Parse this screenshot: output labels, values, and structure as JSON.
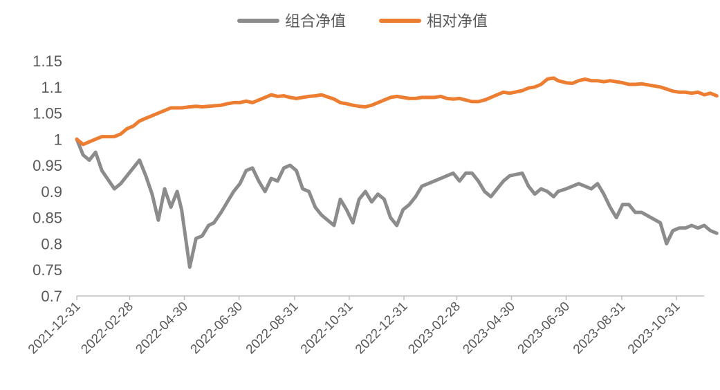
{
  "chart_data": {
    "type": "line",
    "title": "",
    "xlabel": "",
    "ylabel": "",
    "ylim": [
      0.7,
      1.15
    ],
    "y_ticks": [
      "0.7",
      "0.75",
      "0.8",
      "0.85",
      "0.9",
      "0.95",
      "1",
      "1.05",
      "1.1",
      "1.15"
    ],
    "x_ticks": [
      "2021-12-31",
      "2022-02-28",
      "2022-04-30",
      "2022-06-30",
      "2022-08-31",
      "2022-10-31",
      "2022-12-31",
      "2023-02-28",
      "2023-04-30",
      "2023-06-30",
      "2023-08-31",
      "2023-10-31"
    ],
    "grid": false,
    "legend_position": "top",
    "series": [
      {
        "name": "组合净值",
        "color": "#8C8C8C",
        "x": [
          "2021-12-31",
          "2022-01-07",
          "2022-01-14",
          "2022-01-21",
          "2022-01-28",
          "2022-02-11",
          "2022-02-18",
          "2022-02-25",
          "2022-03-04",
          "2022-03-11",
          "2022-03-18",
          "2022-03-25",
          "2022-04-01",
          "2022-04-08",
          "2022-04-15",
          "2022-04-22",
          "2022-04-27",
          "2022-05-06",
          "2022-05-13",
          "2022-05-20",
          "2022-05-27",
          "2022-06-02",
          "2022-06-10",
          "2022-06-17",
          "2022-06-24",
          "2022-07-01",
          "2022-07-08",
          "2022-07-15",
          "2022-07-22",
          "2022-07-29",
          "2022-08-05",
          "2022-08-12",
          "2022-08-19",
          "2022-08-26",
          "2022-09-02",
          "2022-09-09",
          "2022-09-16",
          "2022-09-23",
          "2022-09-30",
          "2022-10-14",
          "2022-10-21",
          "2022-10-28",
          "2022-11-04",
          "2022-11-11",
          "2022-11-18",
          "2022-11-25",
          "2022-12-02",
          "2022-12-09",
          "2022-12-16",
          "2022-12-23",
          "2022-12-30",
          "2023-01-06",
          "2023-01-13",
          "2023-01-20",
          "2023-02-03",
          "2023-02-10",
          "2023-02-17",
          "2023-02-24",
          "2023-03-03",
          "2023-03-10",
          "2023-03-17",
          "2023-03-24",
          "2023-03-31",
          "2023-04-07",
          "2023-04-14",
          "2023-04-21",
          "2023-04-28",
          "2023-05-12",
          "2023-05-19",
          "2023-05-26",
          "2023-06-02",
          "2023-06-09",
          "2023-06-16",
          "2023-06-21",
          "2023-06-30",
          "2023-07-07",
          "2023-07-14",
          "2023-07-21",
          "2023-07-28",
          "2023-08-04",
          "2023-08-11",
          "2023-08-18",
          "2023-08-25",
          "2023-09-01",
          "2023-09-08",
          "2023-09-15",
          "2023-09-22",
          "2023-10-13",
          "2023-10-20",
          "2023-10-27",
          "2023-11-03",
          "2023-11-10",
          "2023-11-17",
          "2023-11-24",
          "2023-12-01",
          "2023-12-08",
          "2023-12-15"
        ],
        "values": [
          1.0,
          0.97,
          0.96,
          0.975,
          0.94,
          0.905,
          0.915,
          0.93,
          0.945,
          0.96,
          0.93,
          0.895,
          0.845,
          0.905,
          0.87,
          0.9,
          0.865,
          0.755,
          0.81,
          0.815,
          0.835,
          0.84,
          0.86,
          0.88,
          0.9,
          0.915,
          0.94,
          0.945,
          0.92,
          0.9,
          0.925,
          0.92,
          0.945,
          0.95,
          0.94,
          0.905,
          0.9,
          0.87,
          0.855,
          0.835,
          0.885,
          0.865,
          0.84,
          0.885,
          0.9,
          0.88,
          0.895,
          0.885,
          0.85,
          0.835,
          0.865,
          0.875,
          0.89,
          0.91,
          0.92,
          0.925,
          0.93,
          0.935,
          0.92,
          0.935,
          0.935,
          0.92,
          0.9,
          0.89,
          0.905,
          0.92,
          0.93,
          0.935,
          0.91,
          0.895,
          0.905,
          0.9,
          0.89,
          0.9,
          0.905,
          0.91,
          0.915,
          0.91,
          0.905,
          0.915,
          0.895,
          0.87,
          0.85,
          0.875,
          0.875,
          0.86,
          0.86,
          0.84,
          0.8,
          0.825,
          0.83,
          0.83,
          0.835,
          0.83,
          0.835,
          0.825,
          0.82
        ]
      },
      {
        "name": "相对净值",
        "color": "#ED7D31",
        "x": [
          "2021-12-31",
          "2022-01-07",
          "2022-01-14",
          "2022-01-21",
          "2022-01-28",
          "2022-02-11",
          "2022-02-18",
          "2022-02-25",
          "2022-03-04",
          "2022-03-11",
          "2022-03-18",
          "2022-03-25",
          "2022-04-01",
          "2022-04-08",
          "2022-04-15",
          "2022-04-22",
          "2022-04-27",
          "2022-05-06",
          "2022-05-13",
          "2022-05-20",
          "2022-05-27",
          "2022-06-02",
          "2022-06-10",
          "2022-06-17",
          "2022-06-24",
          "2022-07-01",
          "2022-07-08",
          "2022-07-15",
          "2022-07-22",
          "2022-07-29",
          "2022-08-05",
          "2022-08-12",
          "2022-08-19",
          "2022-08-26",
          "2022-09-02",
          "2022-09-09",
          "2022-09-16",
          "2022-09-23",
          "2022-09-30",
          "2022-10-14",
          "2022-10-21",
          "2022-10-28",
          "2022-11-04",
          "2022-11-11",
          "2022-11-18",
          "2022-11-25",
          "2022-12-02",
          "2022-12-09",
          "2022-12-16",
          "2022-12-23",
          "2022-12-30",
          "2023-01-06",
          "2023-01-13",
          "2023-01-20",
          "2023-02-03",
          "2023-02-10",
          "2023-02-17",
          "2023-02-24",
          "2023-03-03",
          "2023-03-10",
          "2023-03-17",
          "2023-03-24",
          "2023-03-31",
          "2023-04-07",
          "2023-04-14",
          "2023-04-21",
          "2023-04-28",
          "2023-05-12",
          "2023-05-19",
          "2023-05-26",
          "2023-06-02",
          "2023-06-09",
          "2023-06-16",
          "2023-06-21",
          "2023-06-30",
          "2023-07-07",
          "2023-07-14",
          "2023-07-21",
          "2023-07-28",
          "2023-08-04",
          "2023-08-11",
          "2023-08-18",
          "2023-08-25",
          "2023-09-01",
          "2023-09-08",
          "2023-09-15",
          "2023-09-22",
          "2023-10-13",
          "2023-10-20",
          "2023-10-27",
          "2023-11-03",
          "2023-11-10",
          "2023-11-17",
          "2023-11-24",
          "2023-12-01",
          "2023-12-08",
          "2023-12-15"
        ],
        "values": [
          1.0,
          0.99,
          0.995,
          1.0,
          1.005,
          1.005,
          1.01,
          1.02,
          1.025,
          1.035,
          1.04,
          1.045,
          1.05,
          1.055,
          1.06,
          1.06,
          1.06,
          1.062,
          1.063,
          1.062,
          1.063,
          1.064,
          1.065,
          1.068,
          1.07,
          1.07,
          1.073,
          1.07,
          1.075,
          1.08,
          1.085,
          1.082,
          1.083,
          1.08,
          1.078,
          1.08,
          1.082,
          1.083,
          1.085,
          1.077,
          1.07,
          1.068,
          1.065,
          1.063,
          1.062,
          1.065,
          1.07,
          1.075,
          1.08,
          1.082,
          1.08,
          1.078,
          1.078,
          1.08,
          1.08,
          1.082,
          1.078,
          1.077,
          1.078,
          1.075,
          1.072,
          1.072,
          1.075,
          1.08,
          1.085,
          1.09,
          1.088,
          1.093,
          1.098,
          1.1,
          1.105,
          1.115,
          1.117,
          1.112,
          1.108,
          1.107,
          1.112,
          1.115,
          1.112,
          1.112,
          1.11,
          1.112,
          1.11,
          1.108,
          1.105,
          1.105,
          1.106,
          1.1,
          1.096,
          1.092,
          1.09,
          1.09,
          1.088,
          1.09,
          1.085,
          1.088,
          1.083
        ]
      }
    ]
  }
}
